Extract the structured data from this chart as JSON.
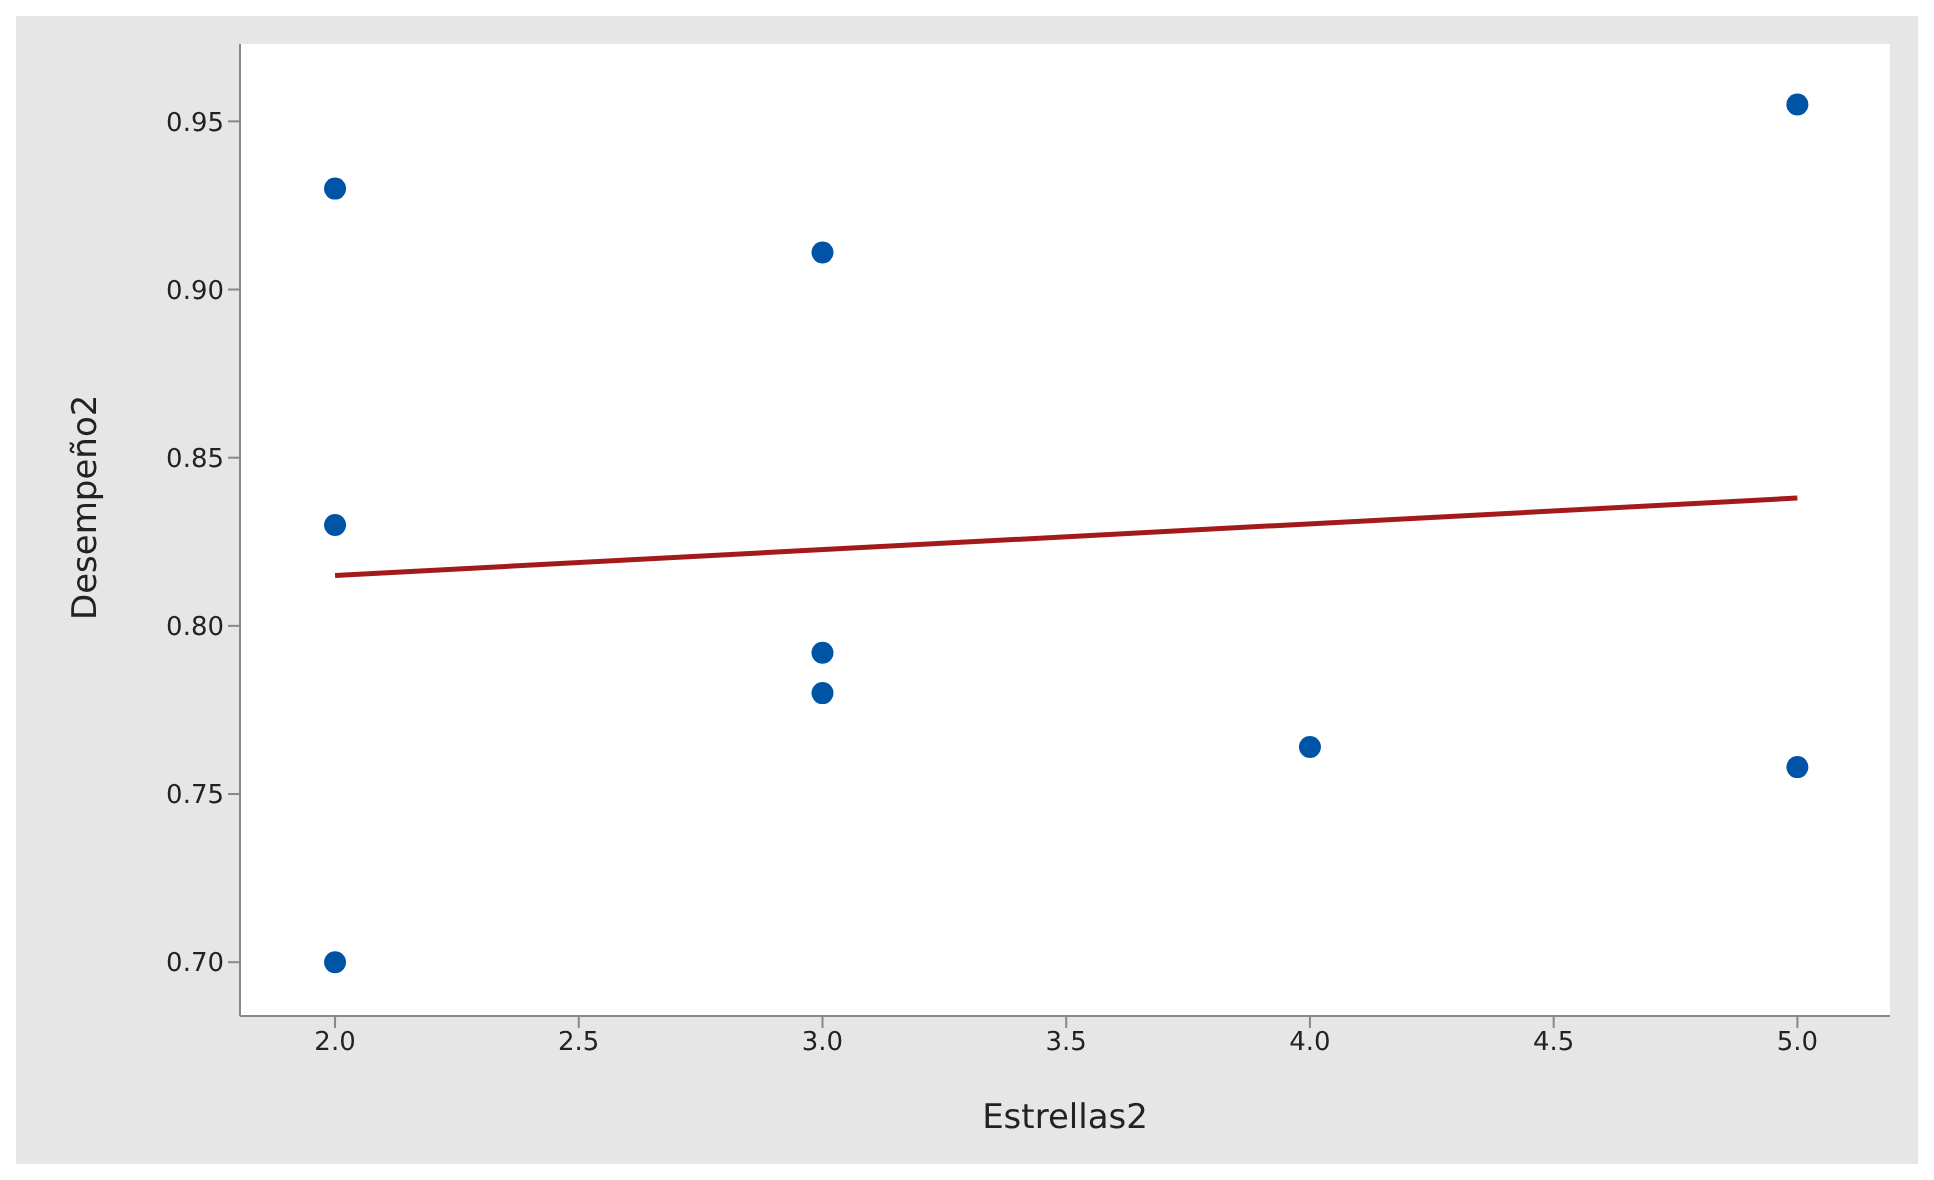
{
  "chart_data": {
    "type": "scatter",
    "xlabel": "Estrellas2",
    "ylabel": "Desempeño2",
    "x": [
      2,
      2,
      2,
      3,
      3,
      3,
      4,
      5,
      5
    ],
    "series": [
      {
        "color": "#0054a6",
        "marker": "circle",
        "values": [
          0.93,
          0.83,
          0.7,
          0.911,
          0.792,
          0.78,
          0.764,
          0.955,
          0.758
        ]
      },
      {
        "type": "line",
        "color": "#a31a1a",
        "x": [
          2,
          5
        ],
        "values": [
          0.815,
          0.838
        ],
        "line_style": "solid"
      }
    ],
    "xlim": [
      1.805,
      5.19
    ],
    "xticks": [
      {
        "value": 2,
        "label": "2.0"
      },
      2.5,
      {
        "value": 3,
        "label": "3.0"
      },
      3.5,
      {
        "value": 4,
        "label": "4.0"
      },
      4.5,
      {
        "value": 5,
        "label": "5.0"
      }
    ],
    "ylim": [
      0.684,
      0.973
    ],
    "yticks": [
      {
        "value": 0.7,
        "label": "0.70"
      },
      0.75,
      {
        "value": 0.8,
        "label": "0.80"
      },
      0.85,
      {
        "value": 0.9,
        "label": "0.90"
      },
      0.95
    ],
    "grid": false,
    "legend": false
  }
}
